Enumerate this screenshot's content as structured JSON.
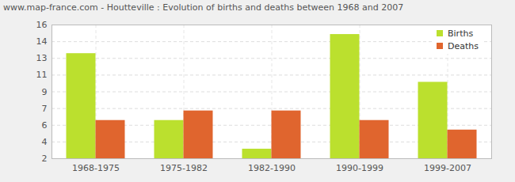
{
  "chart_data": {
    "type": "bar",
    "title": "www.map-france.com - Houtteville : Evolution of births and deaths between 1968 and 2007",
    "categories": [
      "1968-1975",
      "1975-1982",
      "1982-1990",
      "1990-1999",
      "1999-2007"
    ],
    "series": [
      {
        "name": "Births",
        "color": "#bbe02e",
        "values": [
          13,
          6,
          3,
          15,
          10
        ]
      },
      {
        "name": "Deaths",
        "color": "#e0652e",
        "values": [
          6,
          7,
          7,
          6,
          5
        ]
      }
    ],
    "ylim": [
      2,
      16
    ],
    "yticks": [
      2,
      {
        "value": 3.75,
        "label": "4"
      },
      {
        "value": 5.5,
        "label": "6"
      },
      {
        "value": 7.25,
        "label": "7"
      },
      9,
      {
        "value": 10.75,
        "label": "11"
      },
      {
        "value": 12.5,
        "label": "13"
      },
      {
        "value": 14.25,
        "label": "14"
      },
      16
    ],
    "grid": true,
    "legend": "top-right"
  }
}
